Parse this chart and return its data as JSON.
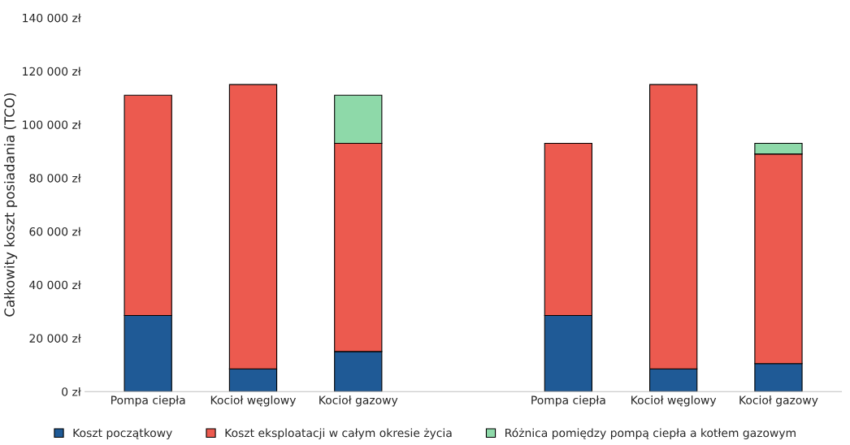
{
  "chart_data": {
    "type": "bar",
    "stacked": true,
    "ylabel": "Całkowity koszt posiadania (TCO)",
    "categories": [
      "Pompa ciepła",
      "Kocioł węglowy",
      "Kocioł gazowy",
      null,
      "Pompa ciepła",
      "Kocioł węglowy",
      "Kocioł gazowy"
    ],
    "series": [
      {
        "name": "Koszt początkowy",
        "color": "#1f5a96",
        "values": [
          28500,
          8500,
          15000,
          null,
          28500,
          8500,
          10500
        ]
      },
      {
        "name": "Koszt eksploatacji w całym okresie życia",
        "color": "#ec5a4f",
        "values": [
          82500,
          106500,
          78000,
          null,
          64500,
          106500,
          78500
        ]
      },
      {
        "name": "Różnica pomiędzy pompą ciepła a kotłem gazowym",
        "color": "#8ed9a9",
        "values": [
          null,
          null,
          18000,
          null,
          null,
          null,
          4000
        ]
      }
    ],
    "ylim": [
      0,
      140000
    ],
    "yticks": [
      {
        "value": 0,
        "label": "0 zł"
      },
      {
        "value": 20000,
        "label": "20 000 zł"
      },
      {
        "value": 40000,
        "label": "40 000 zł"
      },
      {
        "value": 60000,
        "label": "60 000 zł"
      },
      {
        "value": 80000,
        "label": "80 000 zł"
      },
      {
        "value": 100000,
        "label": "100 000 zł"
      },
      {
        "value": 120000,
        "label": "120 000 zł"
      },
      {
        "value": 140000,
        "label": "140 000 zł"
      }
    ],
    "grid": false,
    "legend": "bottom"
  }
}
